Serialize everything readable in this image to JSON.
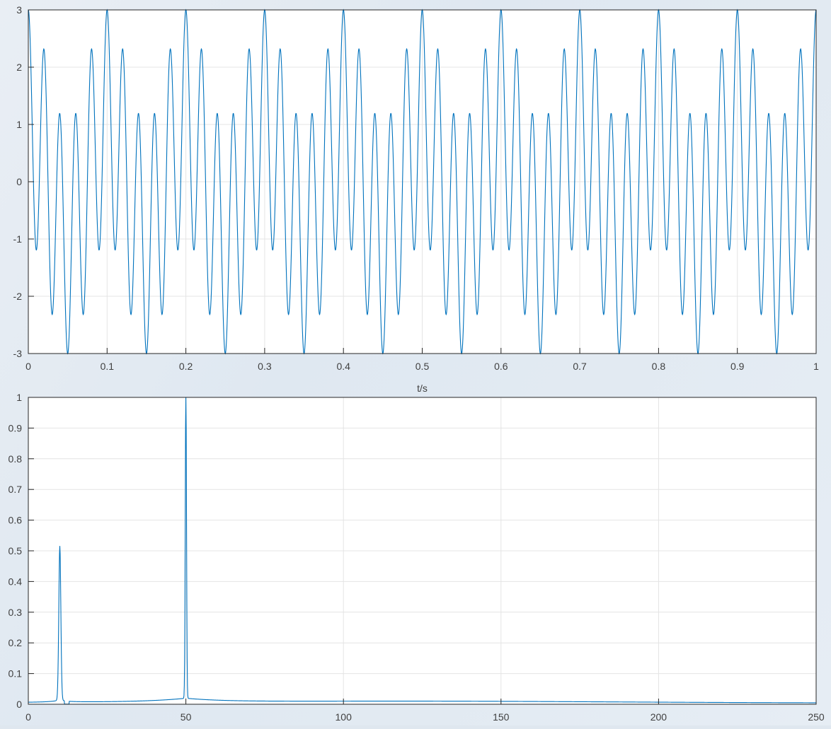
{
  "colors": {
    "series": "#0072BD",
    "axes": "#262626",
    "grid": "#e4e4e4",
    "background": "#e6edf4"
  },
  "chart_data": [
    {
      "type": "line",
      "title": "",
      "xlabel": "t/s",
      "ylabel": "",
      "xlim": [
        0,
        1
      ],
      "ylim": [
        -3,
        3
      ],
      "grid": true,
      "xticks": [
        0,
        0.1,
        0.2,
        0.3,
        0.4,
        0.5,
        0.6,
        0.7,
        0.8,
        0.9,
        1
      ],
      "xtick_labels": [
        "0",
        "0.1",
        "0.2",
        "0.3",
        "0.4",
        "0.5",
        "0.6",
        "0.7",
        "0.8",
        "0.9",
        "1"
      ],
      "yticks": [
        -3,
        -2,
        -1,
        0,
        1,
        2,
        3
      ],
      "ytick_labels": [
        "-3",
        "-2",
        "-1",
        "0",
        "1",
        "2",
        "3"
      ],
      "series": [
        {
          "components": [
            {
              "frequency_hz": 10,
              "amplitude": 1
            },
            {
              "frequency_hz": 50,
              "amplitude": 2
            }
          ]
        }
      ]
    },
    {
      "type": "line",
      "title": "",
      "xlabel": "",
      "ylabel": "",
      "xlim": [
        0,
        250
      ],
      "ylim": [
        0,
        1
      ],
      "grid": true,
      "xticks": [
        0,
        50,
        100,
        150,
        200,
        250
      ],
      "xtick_labels": [
        "0",
        "50",
        "100",
        "150",
        "200",
        "250"
      ],
      "yticks": [
        0,
        0.1,
        0.2,
        0.3,
        0.4,
        0.5,
        0.6,
        0.7,
        0.8,
        0.9,
        1
      ],
      "ytick_labels": [
        "0",
        "0.1",
        "0.2",
        "0.3",
        "0.4",
        "0.5",
        "0.6",
        "0.7",
        "0.8",
        "0.9",
        "1"
      ],
      "series": [
        {
          "peaks": [
            {
              "x": 10,
              "y": 0.5
            },
            {
              "x": 50,
              "y": 1.0
            }
          ]
        }
      ]
    }
  ]
}
